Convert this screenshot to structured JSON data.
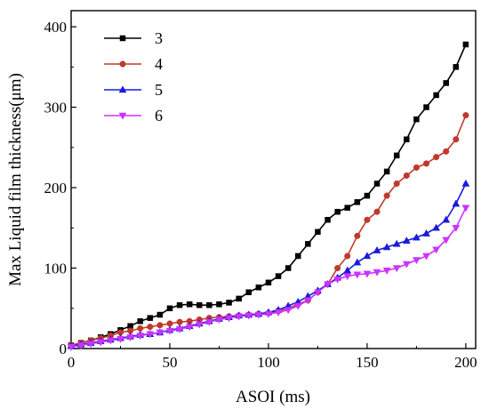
{
  "chart_data": {
    "type": "line",
    "title": "",
    "xlabel": "ASOI (ms)",
    "ylabel": "Max Liquid film thickness(μm)",
    "xlim": [
      0,
      205
    ],
    "ylim": [
      0,
      420
    ],
    "xticks": [
      0,
      50,
      100,
      150,
      200
    ],
    "yticks": [
      0,
      100,
      200,
      300,
      400
    ],
    "grid": false,
    "legend_position": "top-left",
    "series": [
      {
        "name": "3",
        "color": "#000000",
        "marker": "square",
        "x": [
          0,
          5,
          10,
          15,
          20,
          25,
          30,
          35,
          40,
          45,
          50,
          55,
          60,
          65,
          70,
          75,
          80,
          85,
          90,
          95,
          100,
          105,
          110,
          115,
          120,
          125,
          130,
          135,
          140,
          145,
          150,
          155,
          160,
          165,
          170,
          175,
          180,
          185,
          190,
          195,
          200
        ],
        "y": [
          4,
          7,
          10,
          14,
          18,
          23,
          28,
          34,
          38,
          42,
          50,
          54,
          55,
          54,
          54,
          55,
          57,
          62,
          70,
          76,
          82,
          90,
          100,
          115,
          130,
          145,
          160,
          170,
          175,
          182,
          190,
          205,
          220,
          240,
          260,
          285,
          300,
          315,
          330,
          350,
          378
        ]
      },
      {
        "name": "4",
        "color": "#c0392b",
        "marker": "circle",
        "x": [
          0,
          5,
          10,
          15,
          20,
          25,
          30,
          35,
          40,
          45,
          50,
          55,
          60,
          65,
          70,
          75,
          80,
          85,
          90,
          95,
          100,
          105,
          110,
          115,
          120,
          125,
          130,
          135,
          140,
          145,
          150,
          155,
          160,
          165,
          170,
          175,
          180,
          185,
          190,
          195,
          200
        ],
        "y": [
          4,
          7,
          10,
          13,
          16,
          20,
          22,
          25,
          27,
          29,
          31,
          33,
          34,
          36,
          38,
          39,
          40,
          41,
          42,
          43,
          44,
          47,
          50,
          55,
          60,
          70,
          80,
          100,
          115,
          140,
          160,
          170,
          190,
          205,
          215,
          225,
          230,
          238,
          245,
          260,
          290
        ]
      },
      {
        "name": "5",
        "color": "#1a1adf",
        "marker": "triangle-up",
        "x": [
          0,
          5,
          10,
          15,
          20,
          25,
          30,
          35,
          40,
          45,
          50,
          55,
          60,
          65,
          70,
          75,
          80,
          85,
          90,
          95,
          100,
          105,
          110,
          115,
          120,
          125,
          130,
          135,
          140,
          145,
          150,
          155,
          160,
          165,
          170,
          175,
          180,
          185,
          190,
          195,
          200
        ],
        "y": [
          3,
          5,
          7,
          9,
          11,
          13,
          15,
          17,
          18,
          20,
          23,
          25,
          28,
          31,
          34,
          37,
          39,
          41,
          42,
          43,
          45,
          48,
          53,
          58,
          65,
          72,
          80,
          88,
          97,
          107,
          115,
          122,
          126,
          130,
          134,
          138,
          143,
          150,
          160,
          180,
          205
        ]
      },
      {
        "name": "6",
        "color": "#cc33ff",
        "marker": "triangle-down",
        "x": [
          0,
          5,
          10,
          15,
          20,
          25,
          30,
          35,
          40,
          45,
          50,
          55,
          60,
          65,
          70,
          75,
          80,
          85,
          90,
          95,
          100,
          105,
          110,
          115,
          120,
          125,
          130,
          135,
          140,
          145,
          150,
          155,
          160,
          165,
          170,
          175,
          180,
          185,
          190,
          195,
          200
        ],
        "y": [
          2,
          4,
          6,
          8,
          10,
          12,
          14,
          16,
          18,
          20,
          22,
          24,
          27,
          30,
          33,
          36,
          38,
          40,
          41,
          42,
          43,
          45,
          48,
          53,
          60,
          70,
          80,
          86,
          90,
          92,
          93,
          95,
          97,
          100,
          105,
          110,
          115,
          123,
          135,
          150,
          175
        ]
      }
    ]
  }
}
